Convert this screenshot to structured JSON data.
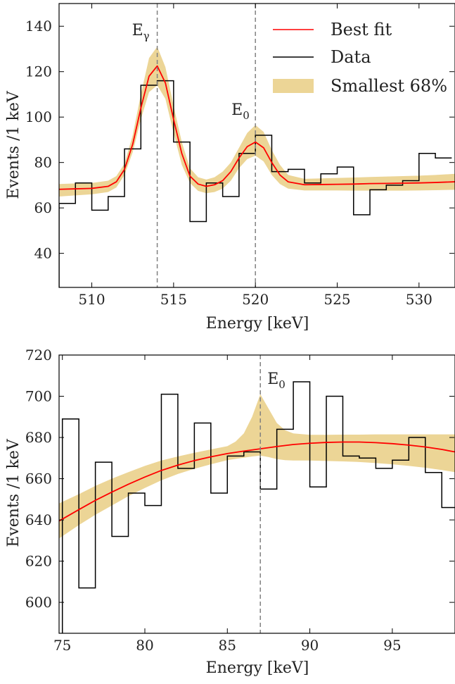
{
  "colors": {
    "fit": "#ff0000",
    "data": "#000000",
    "band": "#ecd596",
    "marker": "#808080",
    "axis": "#000000"
  },
  "legend": {
    "placement": "top-right",
    "items": [
      {
        "label": "Best fit",
        "kind": "line",
        "color": "#ff0000"
      },
      {
        "label": "Data",
        "kind": "line",
        "color": "#000000"
      },
      {
        "label": "Smallest 68%",
        "kind": "band",
        "color": "#ecd596"
      }
    ]
  },
  "chart_data": [
    {
      "type": "line",
      "xlabel": "Energy [keV]",
      "ylabel": "Events /1 keV",
      "xlim": [
        508,
        532.2
      ],
      "ylim": [
        25,
        150
      ],
      "xticks": [
        510,
        515,
        520,
        525,
        530
      ],
      "yticks": [
        40,
        60,
        80,
        100,
        120,
        140
      ],
      "grid": false,
      "markers": [
        {
          "x": 514,
          "label_base": "E",
          "label_sub": "γ"
        },
        {
          "x": 520,
          "label_base": "E",
          "label_sub": "0"
        }
      ],
      "data_steps": {
        "edges": [
          508,
          509,
          510,
          511,
          512,
          513,
          514,
          515,
          516,
          517,
          518,
          519,
          520,
          521,
          522,
          523,
          524,
          525,
          526,
          527,
          528,
          529,
          530,
          531,
          532
        ],
        "counts": [
          62,
          71,
          59,
          65,
          86,
          114,
          116,
          89,
          54,
          71,
          65,
          84,
          92,
          76,
          77,
          71,
          75,
          78,
          57,
          68,
          70,
          72,
          84,
          82
        ]
      },
      "fit": {
        "x": [
          508,
          509,
          510,
          511,
          511.5,
          512,
          512.5,
          513,
          513.5,
          514,
          514.5,
          515,
          515.5,
          516,
          516.5,
          517,
          517.5,
          518,
          518.5,
          519,
          519.5,
          520,
          520.5,
          521,
          521.5,
          522,
          523,
          524,
          525,
          526,
          527,
          528,
          529,
          530,
          531,
          532.2
        ],
        "y": [
          68.2,
          68.4,
          68.6,
          69.5,
          71.5,
          77,
          88,
          104,
          118,
          122.5,
          115,
          99,
          84,
          74,
          70.5,
          69.5,
          70.2,
          72,
          76,
          82,
          87,
          89,
          86.5,
          80,
          74.5,
          71.5,
          70.2,
          70.3,
          70.4,
          70.5,
          70.7,
          70.8,
          70.9,
          71,
          71.2,
          71.5
        ]
      },
      "band": {
        "x": [
          508,
          509,
          510,
          511,
          511.5,
          512,
          512.5,
          513,
          513.5,
          514,
          514.5,
          515,
          515.5,
          516,
          516.5,
          517,
          517.5,
          518,
          518.5,
          519,
          519.5,
          520,
          520.5,
          521,
          521.5,
          522,
          523,
          524,
          525,
          526,
          527,
          528,
          529,
          530,
          531,
          532.2
        ],
        "lower": [
          65,
          65.5,
          66,
          67,
          69,
          74.5,
          84.5,
          99,
          111,
          114,
          108,
          93,
          79,
          71,
          67.5,
          66.5,
          67,
          68.5,
          72,
          77.5,
          81.5,
          83,
          80.5,
          74.5,
          70.5,
          68.5,
          67.7,
          67.7,
          67.7,
          67.6,
          67.6,
          67.6,
          67.6,
          67.7,
          67.8,
          68
        ],
        "upper": [
          70.5,
          70.8,
          71,
          72,
          74,
          79.5,
          92,
          110,
          126,
          131,
          122,
          105,
          89,
          77.5,
          73.5,
          72.5,
          73.5,
          76,
          80,
          86.5,
          93,
          96.5,
          93.5,
          85.5,
          79,
          74.5,
          72.8,
          73,
          73.2,
          73.4,
          73.6,
          73.8,
          74,
          74.2,
          74.5,
          75
        ]
      }
    },
    {
      "type": "line",
      "xlabel": "Energy [keV]",
      "ylabel": "Events /1 keV",
      "xlim": [
        74.8,
        98.8
      ],
      "ylim": [
        585,
        720
      ],
      "xticks": [
        75,
        80,
        85,
        90,
        95
      ],
      "yticks": [
        600,
        620,
        640,
        660,
        680,
        700,
        720
      ],
      "grid": false,
      "markers": [
        {
          "x": 87,
          "label_base": "E",
          "label_sub": "0"
        }
      ],
      "data_steps": {
        "edges": [
          75,
          76,
          77,
          78,
          79,
          80,
          81,
          82,
          83,
          84,
          85,
          86,
          87,
          88,
          89,
          90,
          91,
          92,
          93,
          94,
          95,
          96,
          97,
          98,
          99
        ],
        "counts": [
          689,
          607,
          668,
          632,
          653,
          647,
          701,
          665,
          687,
          653,
          671,
          673,
          655,
          684,
          707,
          656,
          700,
          671,
          670,
          665,
          669,
          680,
          663,
          646
        ]
      },
      "fit": {
        "x": [
          74.8,
          76,
          77,
          78,
          79,
          80,
          81,
          82,
          83,
          84,
          85,
          86,
          87,
          88,
          89,
          90,
          91,
          92,
          93,
          94,
          95,
          96,
          97,
          98,
          98.8
        ],
        "y": [
          639.5,
          645,
          649.5,
          653.5,
          657.3,
          660.8,
          664,
          666.6,
          668.8,
          670.6,
          672.2,
          673.4,
          674.5,
          675.6,
          676.6,
          677.2,
          677.6,
          677.8,
          677.8,
          677.5,
          677,
          676.3,
          675.4,
          674.2,
          673
        ]
      },
      "band": {
        "x": [
          74.8,
          76,
          77,
          78,
          79,
          80,
          81,
          82,
          83,
          84,
          85,
          85.5,
          86,
          86.5,
          87,
          87.5,
          88,
          88.5,
          89,
          90,
          91,
          92,
          93,
          94,
          95,
          96,
          97,
          98,
          98.8
        ],
        "lower": [
          631,
          637.5,
          642.5,
          647,
          651.5,
          655.5,
          659.2,
          662.3,
          664.8,
          667,
          669,
          669.6,
          670.2,
          670.8,
          671.2,
          670.5,
          669.5,
          669,
          668.8,
          668.8,
          668.6,
          668.4,
          668.1,
          667.6,
          667,
          666.2,
          665.3,
          664.2,
          663.2
        ],
        "upper": [
          648,
          652.5,
          656.5,
          660,
          663.2,
          666.2,
          668.8,
          670.8,
          672.6,
          674.2,
          675.8,
          678,
          682,
          690,
          701,
          694,
          687,
          683.5,
          682,
          681.3,
          681.3,
          681.4,
          681.4,
          681.5,
          681.5,
          681.5,
          681.5,
          681.5,
          681.5
        ]
      }
    }
  ]
}
